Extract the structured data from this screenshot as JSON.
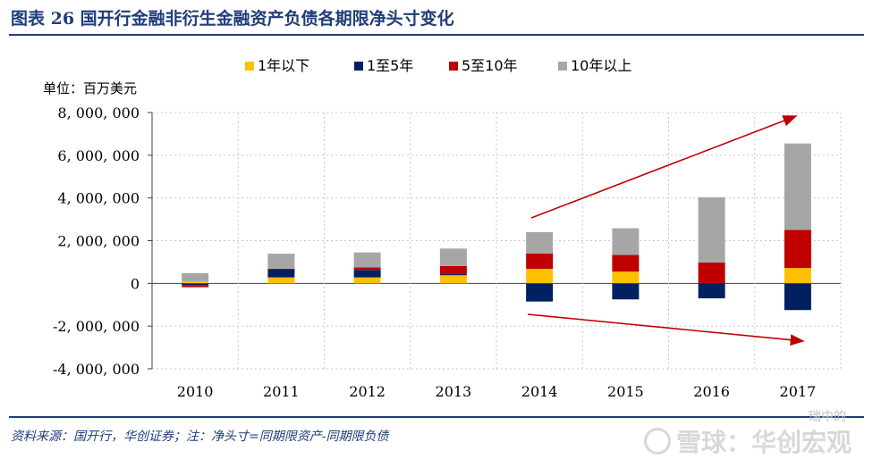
{
  "header": {
    "title": "图表 26  国开行金融非衍生金融资产负债各期限净头寸变化"
  },
  "footer": {
    "source": "资料来源：国开行，华创证券；注：净头寸=同期限资产-同期限负债",
    "watermark_text": "雪球：华创宏观",
    "watermark_sub": "瑞中的"
  },
  "colors": {
    "title": "#1f3d7a",
    "up_to_1y": "#ffc000",
    "1y_to_5y": "#002060",
    "5y_to_10y": "#c00000",
    "over_10y": "#a6a6a6",
    "arrow": "#c00000"
  },
  "chart_data": {
    "type": "bar",
    "stacked": true,
    "unit_label": "单位：百万美元",
    "categories": [
      "2010",
      "2011",
      "2012",
      "2013",
      "2014",
      "2015",
      "2016",
      "2017"
    ],
    "series": [
      {
        "name": "1年以下",
        "color": "#ffc000",
        "values": [
          100000,
          280000,
          280000,
          380000,
          680000,
          550000,
          0,
          720000
        ]
      },
      {
        "name": "1至5年",
        "color": "#002060",
        "values": [
          -80000,
          380000,
          350000,
          50000,
          -850000,
          -750000,
          -700000,
          -1250000
        ]
      },
      {
        "name": "5至10年",
        "color": "#c00000",
        "values": [
          -100000,
          30000,
          120000,
          380000,
          720000,
          780000,
          980000,
          1780000
        ]
      },
      {
        "name": "10年以上",
        "color": "#a6a6a6",
        "values": [
          380000,
          700000,
          700000,
          820000,
          1000000,
          1250000,
          3050000,
          4050000
        ]
      }
    ],
    "y_ticks": [
      8000000,
      6000000,
      4000000,
      2000000,
      0,
      -2000000,
      -4000000
    ],
    "y_tick_labels": [
      "8, 000, 000",
      "6, 000, 000",
      "4, 000, 000",
      "2, 000, 000",
      "0",
      "-2, 000, 000",
      "-4, 000, 000"
    ],
    "ylim": [
      -4000000,
      8000000
    ],
    "grid": true,
    "legend_position": "top"
  }
}
